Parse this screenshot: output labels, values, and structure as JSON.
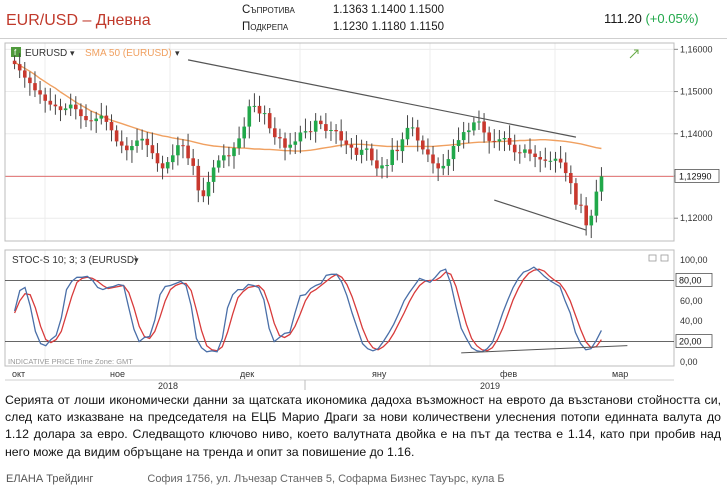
{
  "header": {
    "title": "EUR/USD – Дневна",
    "resistance_label": "Съпротива",
    "support_label": "Подкрепа",
    "resistance": [
      "1.1363",
      "1.1400",
      "1.1500"
    ],
    "support": [
      "1.1230",
      "1.1180",
      "1.1150"
    ],
    "index_value": "111.20",
    "index_change": "(+0.05%)"
  },
  "chart_data": [
    {
      "type": "candlestick",
      "legend": [
        {
          "symbol": "EURUSD",
          "color": "#333333"
        },
        {
          "symbol": "SMA 50 (EURUSD)",
          "color": "#f0a060"
        }
      ],
      "y_ticks": [
        "1,16000",
        "1,15000",
        "1,14000",
        "1,13000",
        "1,12000"
      ],
      "ylim": [
        1.1146,
        1.1615
      ],
      "last_price_label": "1,12990",
      "last_price": 1.1299,
      "x_labels": [
        "окт",
        "ное",
        "дек",
        "яну",
        "фев",
        "мар"
      ],
      "year_labels": [
        "2018",
        "2019"
      ],
      "close": [
        1.1565,
        1.155,
        1.1533,
        1.152,
        1.1503,
        1.1493,
        1.1478,
        1.1469,
        1.1465,
        1.1456,
        1.146,
        1.1469,
        1.1458,
        1.1442,
        1.1432,
        1.143,
        1.1436,
        1.1443,
        1.1428,
        1.1408,
        1.1382,
        1.1372,
        1.1361,
        1.1371,
        1.1384,
        1.1388,
        1.1373,
        1.1354,
        1.133,
        1.1318,
        1.1333,
        1.1349,
        1.1373,
        1.1372,
        1.1342,
        1.1324,
        1.1266,
        1.1252,
        1.1286,
        1.132,
        1.1337,
        1.1349,
        1.1347,
        1.1366,
        1.1389,
        1.1417,
        1.1465,
        1.1466,
        1.1448,
        1.1449,
        1.1413,
        1.1392,
        1.1389,
        1.1367,
        1.1374,
        1.1382,
        1.1403,
        1.1406,
        1.1405,
        1.1431,
        1.1423,
        1.1407,
        1.1409,
        1.1406,
        1.1384,
        1.1374,
        1.1367,
        1.135,
        1.1362,
        1.1365,
        1.1337,
        1.1318,
        1.1325,
        1.1326,
        1.1362,
        1.1359,
        1.1387,
        1.1414,
        1.1415,
        1.1384,
        1.1363,
        1.1351,
        1.133,
        1.1318,
        1.1324,
        1.134,
        1.1371,
        1.1385,
        1.1404,
        1.1408,
        1.1427,
        1.1429,
        1.1403,
        1.1383,
        1.1382,
        1.1387,
        1.139,
        1.1374,
        1.1356,
        1.1355,
        1.1363,
        1.1353,
        1.1345,
        1.1339,
        1.1336,
        1.1336,
        1.1341,
        1.1332,
        1.1307,
        1.1283,
        1.1232,
        1.123,
        1.1183,
        1.1206,
        1.1263,
        1.1299
      ],
      "sma50": [
        1.157,
        1.1562,
        1.1555,
        1.1548,
        1.154,
        1.1531,
        1.1523,
        1.1515,
        1.1508,
        1.1499,
        1.1491,
        1.1483,
        1.1475,
        1.1468,
        1.1461,
        1.1454,
        1.1449,
        1.1443,
        1.1437,
        1.1432,
        1.1428,
        1.1424,
        1.142,
        1.1416,
        1.1412,
        1.1408,
        1.1404,
        1.1401,
        1.1398,
        1.1395,
        1.1393,
        1.139,
        1.1388,
        1.1386,
        1.1384,
        1.1381,
        1.1378,
        1.1375,
        1.1373,
        1.1371,
        1.137,
        1.1369,
        1.1368,
        1.1367,
        1.1366,
        1.1366,
        1.1365,
        1.1364,
        1.1364,
        1.1363,
        1.1363,
        1.1362,
        1.1361,
        1.136,
        1.136,
        1.1359,
        1.1359,
        1.136,
        1.1361,
        1.1363,
        1.1365,
        1.1367,
        1.1369,
        1.1371,
        1.1373,
        1.1374,
        1.1375,
        1.1375,
        1.1375,
        1.1374,
        1.1373,
        1.1372,
        1.1371,
        1.137,
        1.137,
        1.137,
        1.137,
        1.137,
        1.137,
        1.137,
        1.137,
        1.137,
        1.137,
        1.1371,
        1.1372,
        1.1373,
        1.1374,
        1.1375,
        1.1377,
        1.1378,
        1.1379,
        1.138,
        1.138,
        1.1381,
        1.1381,
        1.1382,
        1.1382,
        1.1383,
        1.1383,
        1.1384,
        1.1384,
        1.1385,
        1.1385,
        1.1386,
        1.1386,
        1.1385,
        1.1384,
        1.1383,
        1.1382,
        1.138,
        1.1378,
        1.1376,
        1.1373,
        1.137,
        1.1367,
        1.1365
      ],
      "trendlines": [
        {
          "from": [
            34,
            1.1575
          ],
          "to": [
            110,
            1.1392
          ]
        },
        {
          "from": [
            94,
            1.1243
          ],
          "to": [
            112,
            1.1172
          ]
        }
      ]
    },
    {
      "type": "line",
      "legend": "STOC-S 10; 3; 3 (EURUSD)",
      "y_ticks": [
        "100,00",
        "80,00",
        "60,00",
        "40,00",
        "20,00",
        "0,00"
      ],
      "level_labels": [
        "80,00",
        "20,00"
      ],
      "ylim": [
        0,
        100
      ],
      "watermark": "INDICATIVE PRICE   Time Zone: GMT",
      "k": [
        50,
        70,
        73,
        55,
        30,
        18,
        16,
        22,
        26,
        43,
        71,
        79,
        83,
        83,
        84,
        80,
        73,
        71,
        73,
        74,
        76,
        75,
        53,
        32,
        20,
        24,
        25,
        41,
        66,
        74,
        75,
        77,
        79,
        75,
        55,
        23,
        14,
        10,
        11,
        10,
        23,
        53,
        66,
        71,
        71,
        76,
        75,
        73,
        61,
        33,
        20,
        24,
        28,
        29,
        48,
        65,
        66,
        72,
        75,
        77,
        85,
        86,
        86,
        78,
        65,
        48,
        33,
        18,
        13,
        11,
        13,
        20,
        28,
        37,
        48,
        60,
        68,
        75,
        82,
        80,
        78,
        83,
        89,
        91,
        77,
        54,
        33,
        23,
        14,
        11,
        10,
        13,
        19,
        33,
        48,
        61,
        73,
        82,
        88,
        90,
        93,
        89,
        84,
        80,
        77,
        74,
        60,
        48,
        29,
        18,
        12,
        13,
        21,
        31
      ],
      "d": [
        48,
        60,
        67,
        66,
        53,
        35,
        22,
        19,
        22,
        30,
        47,
        64,
        78,
        82,
        83,
        82,
        79,
        75,
        72,
        73,
        74,
        75,
        68,
        53,
        35,
        25,
        23,
        30,
        44,
        60,
        71,
        75,
        77,
        77,
        70,
        51,
        31,
        16,
        12,
        11,
        15,
        29,
        47,
        63,
        69,
        73,
        74,
        75,
        70,
        56,
        38,
        26,
        24,
        27,
        35,
        47,
        60,
        68,
        71,
        75,
        79,
        83,
        86,
        83,
        76,
        64,
        49,
        33,
        21,
        14,
        12,
        15,
        20,
        28,
        38,
        48,
        59,
        68,
        75,
        79,
        80,
        80,
        83,
        88,
        86,
        74,
        55,
        37,
        23,
        16,
        12,
        11,
        14,
        22,
        33,
        47,
        61,
        72,
        81,
        87,
        90,
        91,
        89,
        84,
        80,
        77,
        70,
        60,
        46,
        32,
        20,
        14,
        15,
        22
      ]
    }
  ],
  "article": {
    "text": "Серията от лоши икономически данни за щатската икономика дадоха възможност на еврото да възстанови стойността си, след като изказване на председателя на ЕЦБ Марио Драги за нови количествени улеснения потопи единната валута до 1.12 долара за евро. Следващото ключово ниво, което валутната двойка е на път да тества е 1.14, като при пробив над него може да видим обръщане на тренда и опит за повишение до 1.16."
  },
  "footer": {
    "company": "ЕЛАНА Трейдинг",
    "address": "София 1756, ул. Лъчезар Станчев 5, Софарма Бизнес Тауърс, кула Б"
  },
  "colors": {
    "bull": "#21a84a",
    "bear": "#c8382e",
    "wick": "#444444",
    "sma": "#f0a060",
    "last_price_line": "#e07070",
    "stoch_k": "#4a6fa8",
    "stoch_d": "#d83b3b",
    "trendline": "#555555"
  }
}
